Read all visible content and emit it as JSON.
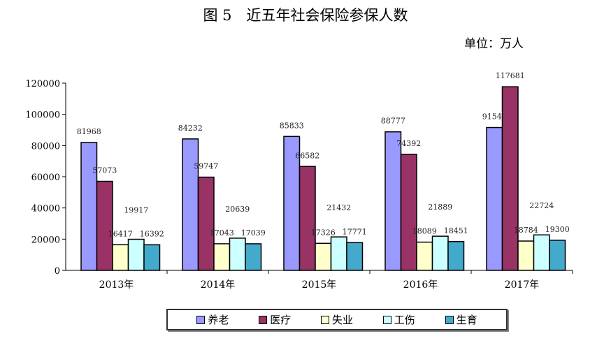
{
  "chart_data": {
    "type": "bar",
    "title": "图 5　近五年社会保险参保人数",
    "unit": "单位：万人",
    "categories": [
      "2013年",
      "2014年",
      "2015年",
      "2016年",
      "2017年"
    ],
    "ylim": [
      0,
      120000
    ],
    "yticks": [
      "0",
      "20000",
      "40000",
      "60000",
      "80000",
      "100000",
      "120000"
    ],
    "grid": false,
    "legend_position": "bottom",
    "series": [
      {
        "name": "养老",
        "color": "#9999ff",
        "values": [
          81968,
          84232,
          85833,
          88777,
          91548
        ]
      },
      {
        "name": "医疗",
        "color": "#993366",
        "values": [
          57073,
          59747,
          66582,
          74392,
          117681
        ]
      },
      {
        "name": "失业",
        "color": "#ffffcc",
        "values": [
          16417,
          17043,
          17326,
          18089,
          18784
        ]
      },
      {
        "name": "工伤",
        "color": "#ccffff",
        "values": [
          19917,
          20639,
          21432,
          21889,
          22724
        ]
      },
      {
        "name": "生育",
        "color": "#44aacc",
        "values": [
          16392,
          17039,
          17771,
          18451,
          19300
        ]
      }
    ]
  }
}
